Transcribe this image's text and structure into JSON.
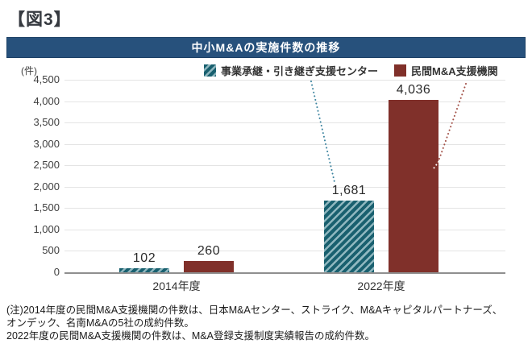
{
  "figure_label": "【図3】",
  "chart_data": {
    "type": "bar",
    "title": "中小M&Aの実施件数の推移",
    "unit_label": "(件)",
    "categories": [
      "2014年度",
      "2022年度"
    ],
    "series": [
      {
        "name": "事業承継・引き継ぎ支援センター",
        "values": [
          102,
          1681
        ],
        "value_labels": [
          "102",
          "1,681"
        ],
        "color": "#19606f",
        "pattern": "diagonal-hatch"
      },
      {
        "name": "民間M&A支援機関",
        "values": [
          260,
          4036
        ],
        "value_labels": [
          "260",
          "4,036"
        ],
        "color": "#80302a",
        "pattern": "solid"
      }
    ],
    "ylim": [
      0,
      4500
    ],
    "ytick_step": 500,
    "ytick_labels": [
      "0",
      "500",
      "1,000",
      "1,500",
      "2,000",
      "2,500",
      "3,000",
      "3,500",
      "4,000",
      "4,500"
    ],
    "grid": true,
    "legend_position": "top-right",
    "annotations": "dotted leader lines connect each legend entry to its 2022 bar"
  },
  "colors": {
    "title_bar_bg": "#27517c",
    "title_bar_border": "#1d4166",
    "series1_base": "#19606f",
    "series1_hatch_stripe": "#8fb7bf",
    "series2": "#80302a",
    "leader_line_1": "#3e85a0",
    "leader_line_2": "#a35249",
    "gridline": "#e4e4e4",
    "baseline": "#8f8f8f"
  },
  "note": {
    "line1": "(注)2014年度の民間M&A支援機関の件数は、日本M&Aセンター、ストライク、M&Aキャピタルパートナーズ、",
    "line2": "オンデック、名南M&Aの5社の成約件数。",
    "line3": "2022年度の民間M&A支援機関の件数は、M&A登録支援制度実績報告の成約件数。"
  }
}
